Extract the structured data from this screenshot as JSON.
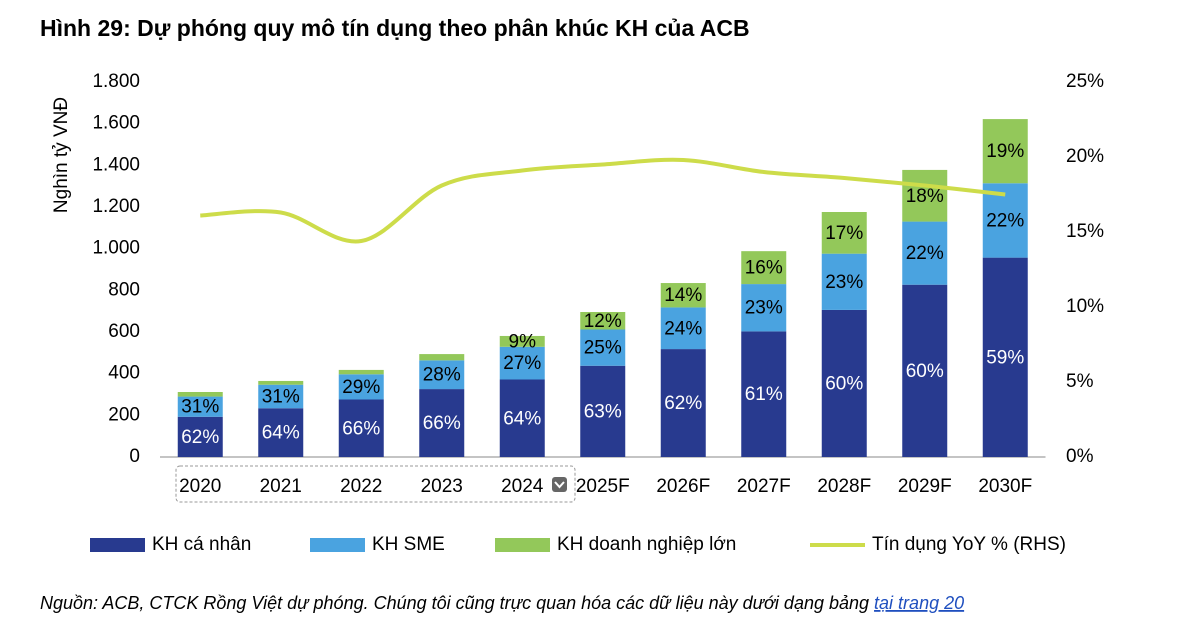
{
  "chart_data": {
    "type": "bar",
    "stacked": true,
    "title": "Hình 29: Dự phóng quy mô tín dụng theo phân khúc KH của ACB",
    "y_label": "Nghìn tỷ VNĐ",
    "categories": [
      "2020",
      "2021",
      "2022",
      "2023",
      "2024",
      "2025F",
      "2026F",
      "2027F",
      "2028F",
      "2029F",
      "2030F"
    ],
    "series": [
      {
        "name": "KH cá nhân",
        "color": "#283a8f",
        "values": [
          193,
          234,
          276,
          326,
          372,
          438,
          518,
          603,
          706,
          827,
          957
        ],
        "shares": [
          62,
          64,
          66,
          66,
          64,
          63,
          62,
          61,
          60,
          60,
          59
        ],
        "share_labels": [
          "62%",
          "64%",
          "66%",
          "66%",
          "64%",
          "63%",
          "62%",
          "61%",
          "60%",
          "60%",
          "59%"
        ]
      },
      {
        "name": "KH SME",
        "color": "#4aa3e0",
        "values": [
          97,
          113,
          121,
          138,
          157,
          174,
          200,
          227,
          270,
          303,
          357
        ],
        "shares": [
          31,
          31,
          29,
          28,
          27,
          25,
          24,
          23,
          23,
          22,
          22
        ],
        "share_labels": [
          "31%",
          "31%",
          "29%",
          "28%",
          "27%",
          "25%",
          "24%",
          "23%",
          "23%",
          "22%",
          "22%"
        ]
      },
      {
        "name": "KH doanh nghiệp lớn",
        "color": "#93c85a",
        "values": [
          22,
          18,
          21,
          30,
          52,
          84,
          117,
          158,
          200,
          248,
          308
        ],
        "shares": [
          null,
          null,
          null,
          null,
          9,
          12,
          14,
          16,
          17,
          18,
          19
        ],
        "share_labels": [
          null,
          null,
          null,
          null,
          "9%",
          "12%",
          "14%",
          "16%",
          "17%",
          "18%",
          "19%"
        ]
      },
      {
        "name": "Tín dụng YoY % (RHS)",
        "color": "#cddc4a",
        "type": "line",
        "axis": "y2",
        "values": [
          16.1,
          16.3,
          14.4,
          18.1,
          19.1,
          19.5,
          19.8,
          19.0,
          18.6,
          18.1,
          17.5
        ]
      }
    ],
    "ylim": [
      0,
      1800
    ],
    "yticks": [
      0,
      200,
      400,
      600,
      800,
      {
        "value": 1000,
        "label": "1.000"
      },
      {
        "value": 1200,
        "label": "1.200"
      },
      {
        "value": 1400,
        "label": "1.400"
      },
      {
        "value": 1600,
        "label": "1.600"
      },
      {
        "value": 1800,
        "label": "1.800"
      }
    ],
    "y2lim": [
      0,
      25
    ],
    "y2ticks": [
      {
        "value": 0,
        "label": "0%"
      },
      {
        "value": 5,
        "label": "5%"
      },
      {
        "value": 10,
        "label": "10%"
      },
      {
        "value": 15,
        "label": "15%"
      },
      {
        "value": 20,
        "label": "20%"
      },
      {
        "value": 25,
        "label": "25%"
      }
    ],
    "legend": "bottom",
    "source": {
      "text": "Nguồn: ACB, CTCK Rồng Việt dự phóng. Chúng tôi cũng trực quan hóa các dữ liệu này dưới dạng bảng",
      "link": "tại trang 20"
    }
  }
}
